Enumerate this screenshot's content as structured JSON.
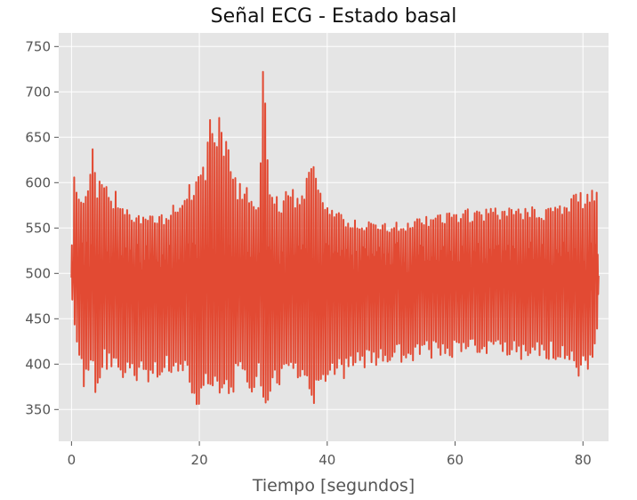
{
  "chart_data": {
    "type": "line",
    "title": "Señal ECG - Estado basal",
    "xlabel": "Tiempo [segundos]",
    "ylabel": "",
    "xlim": [
      -2,
      84
    ],
    "ylim": [
      315,
      765
    ],
    "xticks": [
      0,
      20,
      40,
      60,
      80
    ],
    "yticks": [
      350,
      400,
      450,
      500,
      550,
      600,
      650,
      700,
      750
    ],
    "xtick_labels": [
      "0",
      "20",
      "40",
      "60",
      "80"
    ],
    "ytick_labels": [
      "350",
      "400",
      "450",
      "500",
      "550",
      "600",
      "650",
      "700",
      "750"
    ],
    "grid": true,
    "background": "#e5e5e5",
    "line_color": "#e24a33",
    "series": [
      {
        "x": [
          0.0,
          0.4,
          0.8,
          1.5,
          2.0,
          3.2,
          3.8,
          5.0,
          5.8,
          7.0,
          8.0,
          9.0,
          9.5,
          11.0,
          12.0,
          13.0,
          14.5,
          16.0,
          17.0,
          18.0,
          19.2,
          20.0,
          21.0,
          21.8,
          22.5,
          23.0,
          24.0,
          25.0,
          26.0,
          27.0,
          28.0,
          29.3,
          29.8,
          31.0,
          32.5,
          34.0,
          35.5,
          37.0,
          38.0,
          39.0,
          40.0,
          42.0,
          45.0,
          50.0,
          55.0,
          60.0,
          65.0,
          70.0,
          75.0,
          77.5,
          79.0,
          80.0,
          81.5,
          82.5
        ],
        "y": [
          535,
          628,
          600,
          595,
          583,
          643,
          604,
          600,
          592,
          590,
          585,
          575,
          570,
          568,
          565,
          563,
          565,
          578,
          590,
          598,
          600,
          618,
          629,
          688,
          650,
          690,
          652,
          628,
          600,
          600,
          590,
          585,
          743,
          595,
          580,
          595,
          590,
          615,
          625,
          600,
          580,
          565,
          558,
          556,
          562,
          570,
          572,
          573,
          575,
          580,
          593,
          590,
          602,
          580
        ]
      },
      {
        "x": [
          0.0,
          0.4,
          0.8,
          1.5,
          2.0,
          3.2,
          3.8,
          5.0,
          5.8,
          7.0,
          8.0,
          9.0,
          9.5,
          11.0,
          12.0,
          13.0,
          14.5,
          16.0,
          17.0,
          18.0,
          19.2,
          20.0,
          21.0,
          21.8,
          22.5,
          23.0,
          24.0,
          25.0,
          26.0,
          27.0,
          28.0,
          29.3,
          29.8,
          31.0,
          32.5,
          34.0,
          35.5,
          37.0,
          38.0,
          39.0,
          40.0,
          42.0,
          45.0,
          50.0,
          55.0,
          60.0,
          65.0,
          70.0,
          75.0,
          77.5,
          79.0,
          80.0,
          81.5,
          82.5
        ],
        "y": [
          468,
          425,
          420,
          378,
          372,
          395,
          340,
          398,
          388,
          395,
          380,
          375,
          372,
          380,
          378,
          378,
          385,
          388,
          385,
          390,
          340,
          360,
          365,
          355,
          358,
          358,
          356,
          365,
          380,
          375,
          365,
          375,
          343,
          365,
          370,
          375,
          380,
          360,
          356,
          355,
          380,
          380,
          395,
          400,
          405,
          408,
          408,
          405,
          405,
          400,
          385,
          385,
          388,
          470
        ]
      }
    ]
  }
}
